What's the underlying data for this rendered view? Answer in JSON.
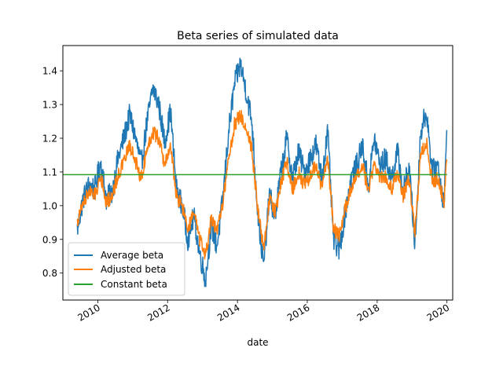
{
  "chart_data": {
    "type": "line",
    "title": "Beta series of simulated data",
    "xlabel": "date",
    "ylabel": "",
    "xlim": [
      "2009-01-01",
      "2020-03-01"
    ],
    "ylim": [
      0.72,
      1.475
    ],
    "x_ticks": [
      "2010",
      "2012",
      "2014",
      "2016",
      "2018",
      "2020"
    ],
    "y_ticks": [
      "0.8",
      "0.9",
      "1.0",
      "1.1",
      "1.2",
      "1.3",
      "1.4"
    ],
    "grid": false,
    "legend_position": "lower left",
    "series": [
      {
        "name": "Average beta",
        "color": "#1f77b4",
        "points": [
          [
            "2009-06-01",
            0.93
          ],
          [
            "2009-08-01",
            1.02
          ],
          [
            "2009-10-01",
            1.06
          ],
          [
            "2009-12-01",
            1.05
          ],
          [
            "2010-02-01",
            1.13
          ],
          [
            "2010-04-01",
            1.02
          ],
          [
            "2010-06-01",
            1.04
          ],
          [
            "2010-08-01",
            1.14
          ],
          [
            "2010-10-01",
            1.2
          ],
          [
            "2010-12-01",
            1.27
          ],
          [
            "2011-02-01",
            1.2
          ],
          [
            "2011-04-01",
            1.12
          ],
          [
            "2011-06-01",
            1.25
          ],
          [
            "2011-08-01",
            1.35
          ],
          [
            "2011-10-01",
            1.3
          ],
          [
            "2011-12-01",
            1.19
          ],
          [
            "2012-02-01",
            1.28
          ],
          [
            "2012-04-01",
            1.05
          ],
          [
            "2012-06-01",
            1.0
          ],
          [
            "2012-08-01",
            0.9
          ],
          [
            "2012-10-01",
            0.97
          ],
          [
            "2012-12-01",
            0.86
          ],
          [
            "2013-02-01",
            0.78
          ],
          [
            "2013-04-01",
            0.94
          ],
          [
            "2013-06-01",
            0.88
          ],
          [
            "2013-08-01",
            1.02
          ],
          [
            "2013-10-01",
            1.22
          ],
          [
            "2013-12-01",
            1.36
          ],
          [
            "2014-02-01",
            1.42
          ],
          [
            "2014-04-01",
            1.34
          ],
          [
            "2014-06-01",
            1.25
          ],
          [
            "2014-08-01",
            0.98
          ],
          [
            "2014-10-01",
            0.82
          ],
          [
            "2014-12-01",
            1.03
          ],
          [
            "2015-02-01",
            0.97
          ],
          [
            "2015-04-01",
            1.1
          ],
          [
            "2015-06-01",
            1.2
          ],
          [
            "2015-08-01",
            1.08
          ],
          [
            "2015-10-01",
            1.16
          ],
          [
            "2015-12-01",
            1.1
          ],
          [
            "2016-02-01",
            1.14
          ],
          [
            "2016-04-01",
            1.18
          ],
          [
            "2016-06-01",
            1.08
          ],
          [
            "2016-08-01",
            1.22
          ],
          [
            "2016-10-01",
            0.9
          ],
          [
            "2016-12-01",
            0.87
          ],
          [
            "2017-02-01",
            0.98
          ],
          [
            "2017-04-01",
            1.08
          ],
          [
            "2017-06-01",
            1.12
          ],
          [
            "2017-08-01",
            1.18
          ],
          [
            "2017-10-01",
            1.06
          ],
          [
            "2017-12-01",
            1.2
          ],
          [
            "2018-02-01",
            1.12
          ],
          [
            "2018-04-01",
            1.14
          ],
          [
            "2018-06-01",
            1.08
          ],
          [
            "2018-08-01",
            1.16
          ],
          [
            "2018-10-01",
            1.04
          ],
          [
            "2018-12-01",
            1.12
          ],
          [
            "2019-02-01",
            0.88
          ],
          [
            "2019-04-01",
            1.22
          ],
          [
            "2019-06-01",
            1.28
          ],
          [
            "2019-08-01",
            1.1
          ],
          [
            "2019-10-01",
            1.12
          ],
          [
            "2019-12-01",
            1.0
          ],
          [
            "2020-01-01",
            1.22
          ]
        ]
      },
      {
        "name": "Adjusted beta",
        "color": "#ff7f0e",
        "points": [
          [
            "2009-06-01",
            0.95
          ],
          [
            "2009-08-01",
            1.01
          ],
          [
            "2009-10-01",
            1.04
          ],
          [
            "2009-12-01",
            1.03
          ],
          [
            "2010-02-01",
            1.09
          ],
          [
            "2010-04-01",
            1.01
          ],
          [
            "2010-06-01",
            1.03
          ],
          [
            "2010-08-01",
            1.09
          ],
          [
            "2010-10-01",
            1.13
          ],
          [
            "2010-12-01",
            1.18
          ],
          [
            "2011-02-01",
            1.13
          ],
          [
            "2011-04-01",
            1.08
          ],
          [
            "2011-06-01",
            1.17
          ],
          [
            "2011-08-01",
            1.22
          ],
          [
            "2011-10-01",
            1.2
          ],
          [
            "2011-12-01",
            1.12
          ],
          [
            "2012-02-01",
            1.18
          ],
          [
            "2012-04-01",
            1.03
          ],
          [
            "2012-06-01",
            1.0
          ],
          [
            "2012-08-01",
            0.93
          ],
          [
            "2012-10-01",
            0.98
          ],
          [
            "2012-12-01",
            0.9
          ],
          [
            "2013-02-01",
            0.85
          ],
          [
            "2013-04-01",
            0.96
          ],
          [
            "2013-06-01",
            0.92
          ],
          [
            "2013-08-01",
            1.01
          ],
          [
            "2013-10-01",
            1.14
          ],
          [
            "2013-12-01",
            1.24
          ],
          [
            "2014-02-01",
            1.27
          ],
          [
            "2014-04-01",
            1.23
          ],
          [
            "2014-06-01",
            1.17
          ],
          [
            "2014-08-01",
            0.99
          ],
          [
            "2014-10-01",
            0.87
          ],
          [
            "2014-12-01",
            1.02
          ],
          [
            "2015-02-01",
            0.98
          ],
          [
            "2015-04-01",
            1.07
          ],
          [
            "2015-06-01",
            1.13
          ],
          [
            "2015-08-01",
            1.05
          ],
          [
            "2015-10-01",
            1.1
          ],
          [
            "2015-12-01",
            1.06
          ],
          [
            "2016-02-01",
            1.09
          ],
          [
            "2016-04-01",
            1.12
          ],
          [
            "2016-06-01",
            1.05
          ],
          [
            "2016-08-01",
            1.15
          ],
          [
            "2016-10-01",
            0.93
          ],
          [
            "2016-12-01",
            0.91
          ],
          [
            "2017-02-01",
            0.99
          ],
          [
            "2017-04-01",
            1.05
          ],
          [
            "2017-06-01",
            1.08
          ],
          [
            "2017-08-01",
            1.12
          ],
          [
            "2017-10-01",
            1.04
          ],
          [
            "2017-12-01",
            1.13
          ],
          [
            "2018-02-01",
            1.08
          ],
          [
            "2018-04-01",
            1.09
          ],
          [
            "2018-06-01",
            1.05
          ],
          [
            "2018-08-01",
            1.1
          ],
          [
            "2018-10-01",
            1.03
          ],
          [
            "2018-12-01",
            1.08
          ],
          [
            "2019-02-01",
            0.92
          ],
          [
            "2019-04-01",
            1.15
          ],
          [
            "2019-06-01",
            1.19
          ],
          [
            "2019-08-01",
            1.07
          ],
          [
            "2019-10-01",
            1.08
          ],
          [
            "2019-12-01",
            1.01
          ],
          [
            "2020-01-01",
            1.15
          ]
        ]
      },
      {
        "name": "Constant beta",
        "color": "#2ca02c",
        "points": [
          [
            "2009-01-01",
            1.092
          ],
          [
            "2020-01-01",
            1.092
          ]
        ]
      }
    ]
  }
}
